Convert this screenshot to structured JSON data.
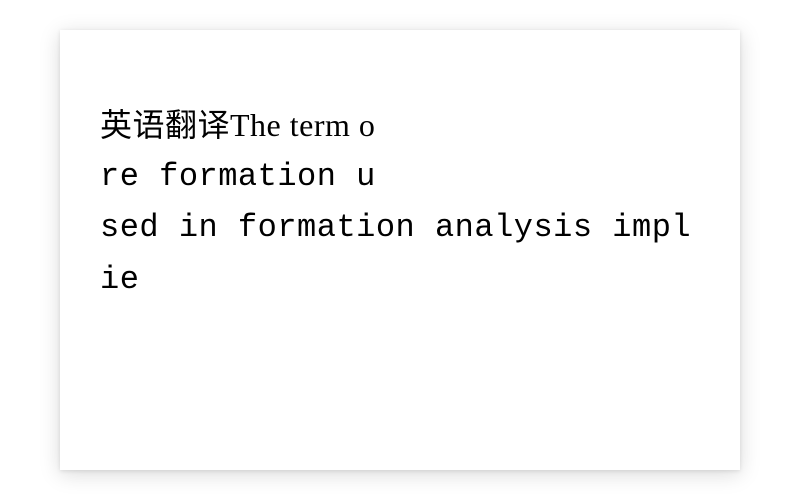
{
  "document": {
    "background_color": "#ffffff",
    "text_color": "#000000",
    "font_size_pt": 32,
    "line_height": 1.6,
    "paper_shadow_color": "rgba(0,0,0,0.15)",
    "lines": [
      "英语翻译The term o",
      "re formation u",
      "sed in formation analysis implie"
    ]
  }
}
